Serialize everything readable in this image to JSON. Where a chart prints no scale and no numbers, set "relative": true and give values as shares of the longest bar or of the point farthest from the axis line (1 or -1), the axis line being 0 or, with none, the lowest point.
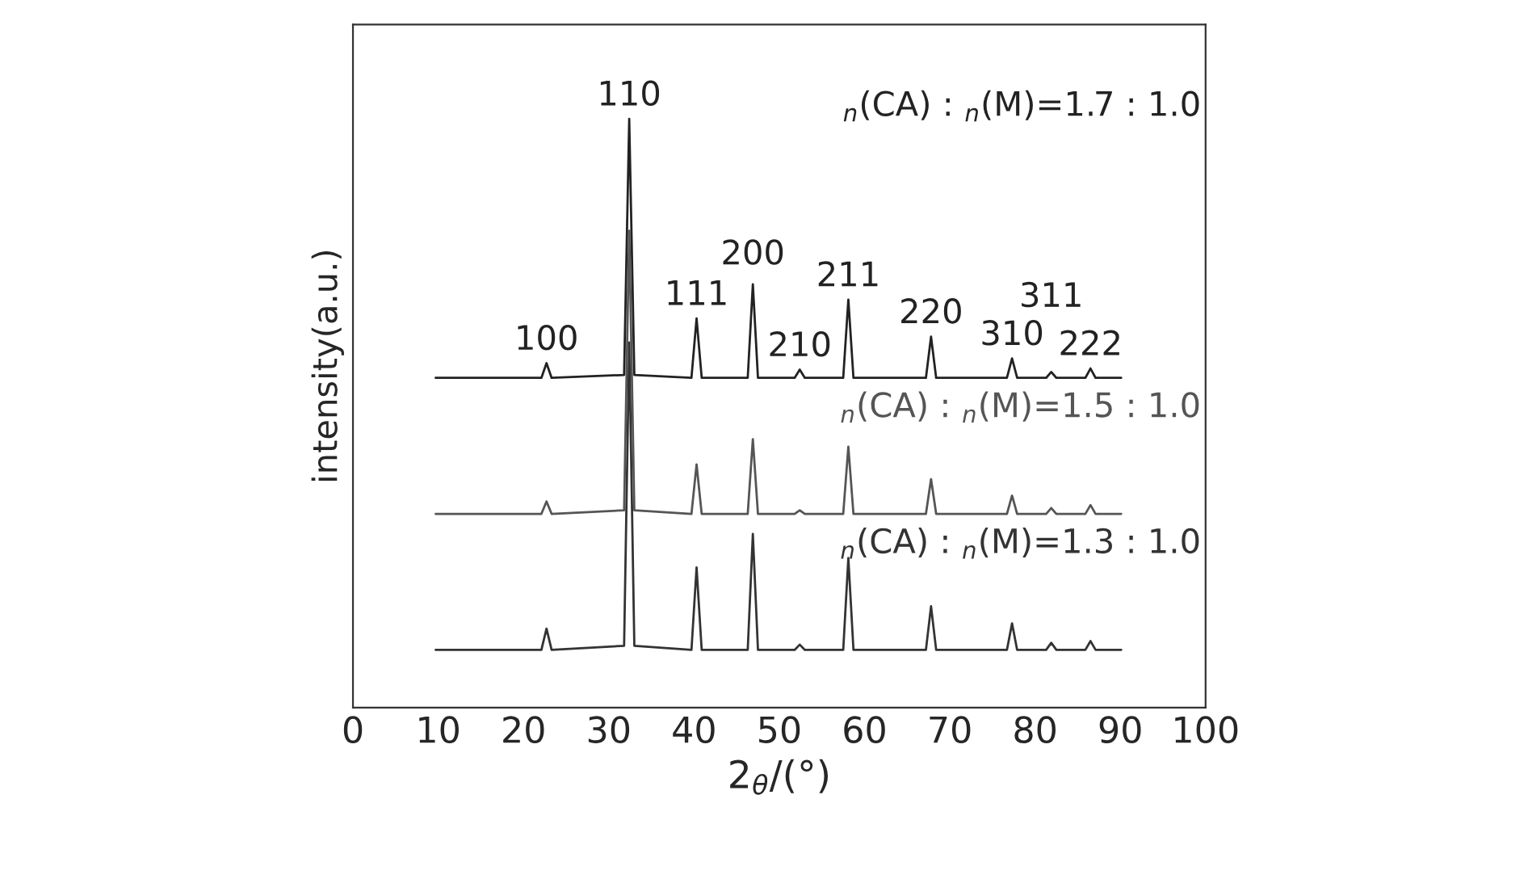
{
  "chart_data": {
    "type": "line",
    "relative": true,
    "xlabel": "2$_{θ}$/(°)",
    "ylabel": "intensity(a.u.)",
    "xlim": [
      0,
      100
    ],
    "xticks": [
      0,
      10,
      20,
      30,
      40,
      50,
      60,
      70,
      80,
      90,
      100
    ],
    "x": [
      9.7,
      22.1,
      22.7,
      23.3,
      31.8,
      32.4,
      33.0,
      39.7,
      40.3,
      40.9,
      46.3,
      46.9,
      47.5,
      51.8,
      52.4,
      53.0,
      57.5,
      58.1,
      58.7,
      67.2,
      67.8,
      68.4,
      76.7,
      77.3,
      77.9,
      81.3,
      81.9,
      82.5,
      85.9,
      86.5,
      87.1,
      90.1
    ],
    "series": [
      {
        "name": "$_{n}$(CA) : $_{n}$(M)=1.3 : 1.0",
        "color": "#333333",
        "values": [
          0.098,
          0.098,
          0.134,
          0.098,
          0.105,
          0.62,
          0.105,
          0.098,
          0.238,
          0.098,
          0.098,
          0.295,
          0.098,
          0.098,
          0.107,
          0.098,
          0.098,
          0.254,
          0.098,
          0.098,
          0.172,
          0.098,
          0.098,
          0.143,
          0.098,
          0.098,
          0.11,
          0.098,
          0.098,
          0.113,
          0.098,
          0.098
        ]
      },
      {
        "name": "$_{n}$(CA) : $_{n}$(M)=1.5 : 1.0",
        "color": "#555555",
        "values": [
          0.329,
          0.329,
          0.35,
          0.329,
          0.335,
          0.81,
          0.335,
          0.329,
          0.413,
          0.329,
          0.329,
          0.456,
          0.329,
          0.329,
          0.335,
          0.329,
          0.329,
          0.443,
          0.329,
          0.329,
          0.388,
          0.329,
          0.329,
          0.36,
          0.329,
          0.329,
          0.339,
          0.329,
          0.329,
          0.344,
          0.329,
          0.329
        ]
      },
      {
        "name": "$_{n}$(CA) : $_{n}$(M)=1.7 : 1.0",
        "color": "#222222",
        "values": [
          0.56,
          0.56,
          0.585,
          0.56,
          0.565,
          1.0,
          0.565,
          0.56,
          0.661,
          0.56,
          0.56,
          0.719,
          0.56,
          0.56,
          0.574,
          0.56,
          0.56,
          0.693,
          0.56,
          0.56,
          0.63,
          0.56,
          0.56,
          0.593,
          0.56,
          0.56,
          0.57,
          0.56,
          0.56,
          0.576,
          0.56,
          0.56
        ]
      }
    ],
    "annotations": [
      {
        "text": "100",
        "x": 22.7,
        "y": 0.585
      },
      {
        "text": "110",
        "x": 32.4,
        "y": 1.0
      },
      {
        "text": "111",
        "x": 40.3,
        "y": 0.661
      },
      {
        "text": "200",
        "x": 46.9,
        "y": 0.719
      },
      {
        "text": "210",
        "x": 52.4,
        "y": 0.574
      },
      {
        "text": "211",
        "x": 58.1,
        "y": 0.693
      },
      {
        "text": "220",
        "x": 67.8,
        "y": 0.63
      },
      {
        "text": "310",
        "x": 77.3,
        "y": 0.593
      },
      {
        "text": "311",
        "x": 81.9,
        "y": 0.57
      },
      {
        "text": "222",
        "x": 86.5,
        "y": 0.576
      }
    ]
  }
}
